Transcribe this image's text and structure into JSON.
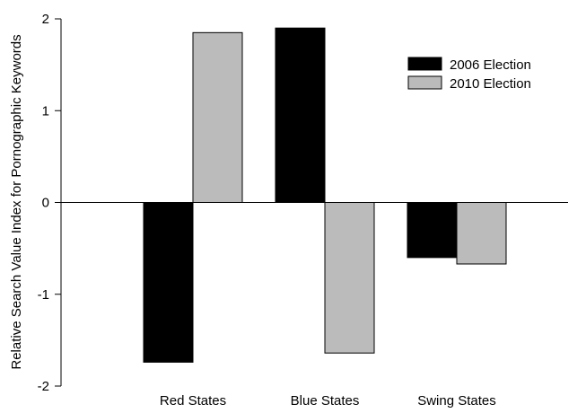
{
  "chart_data": {
    "type": "bar",
    "title": "",
    "xlabel": "",
    "ylabel": "Relative Search Value Index for Pornographic Keywords",
    "ylim": [
      -2,
      2
    ],
    "yticks": [
      -2,
      -1,
      0,
      1,
      2
    ],
    "ytick_labels": [
      "-2",
      "-1",
      "0",
      "1",
      "2"
    ],
    "categories": [
      "Red States",
      "Blue States",
      "Swing States"
    ],
    "series": [
      {
        "name": "2006 Election",
        "color": "#000000",
        "values": [
          -1.74,
          1.9,
          -0.6
        ]
      },
      {
        "name": "2010 Election",
        "color": "#bbbbbb",
        "values": [
          1.85,
          -1.64,
          -0.67
        ]
      }
    ],
    "legend_position": "top-right",
    "grid": false,
    "zero_line": true
  }
}
